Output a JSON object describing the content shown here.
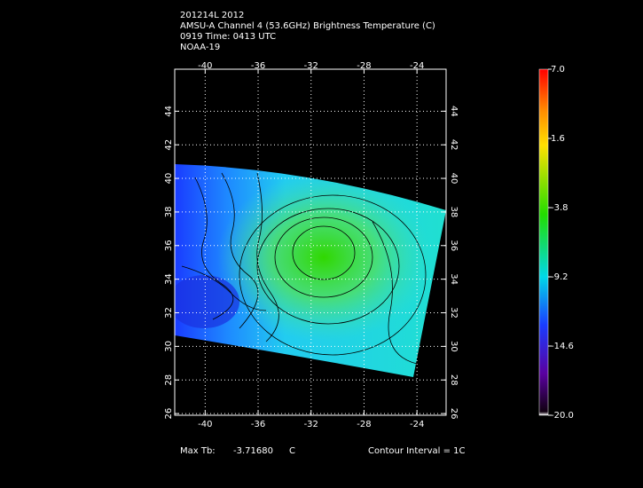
{
  "header": {
    "lines": [
      "201214L 2012",
      "AMSU-A Channel 4 (53.6GHz) Brightness Temperature (C)",
      "0919 Time: 0413 UTC",
      "NOAA-19"
    ]
  },
  "map": {
    "xlim": [
      -42.3,
      -21.8
    ],
    "ylim": [
      25.9,
      46.5
    ],
    "lon_ticks": [
      -40,
      -36,
      -32,
      -28,
      -24
    ],
    "lat_ticks": [
      26,
      28,
      30,
      32,
      34,
      36,
      38,
      40,
      42,
      44
    ]
  },
  "colorbar": {
    "lim": [
      -20,
      7
    ],
    "ticks": [
      {
        "value": 7,
        "label": "7.0"
      },
      {
        "value": 1.6,
        "label": "1.6"
      },
      {
        "value": -3.8,
        "label": "-3.8"
      },
      {
        "value": -9.2,
        "label": "-9.2"
      },
      {
        "value": -14.6,
        "label": "-14.6"
      },
      {
        "value": -20,
        "label": "-20.0"
      }
    ]
  },
  "footer": {
    "max_label": "Max Tb:",
    "max_value": "-3.71680",
    "unit": "C",
    "contour": "Contour Interval = 1C"
  }
}
